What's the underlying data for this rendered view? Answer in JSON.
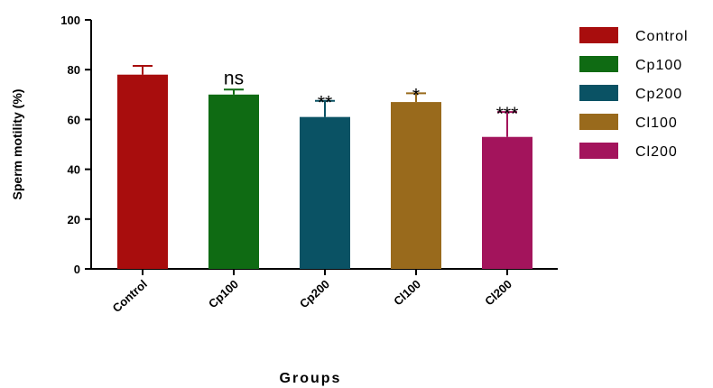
{
  "chart_data": {
    "type": "bar",
    "title": "",
    "xlabel": "Groups",
    "ylabel": "Sperm motility (%)",
    "ylim": [
      0,
      100
    ],
    "yticks": [
      0,
      20,
      40,
      60,
      80,
      100
    ],
    "categories": [
      "Control",
      "Cp100",
      "Cp200",
      "Cl100",
      "Cl200"
    ],
    "values": [
      78,
      70,
      61,
      67,
      53
    ],
    "error_bars": [
      3.5,
      2,
      6.5,
      3.5,
      10
    ],
    "annotations": [
      "",
      "ns",
      "**",
      "*",
      "***"
    ],
    "colors": [
      "#a80d0d",
      "#0f6b13",
      "#0a5264",
      "#996a1c",
      "#a3145c"
    ],
    "legend": {
      "position": "top-right",
      "entries": [
        "Control",
        "Cp100",
        "Cp200",
        "Cl100",
        "Cl200"
      ]
    },
    "grid": false
  }
}
